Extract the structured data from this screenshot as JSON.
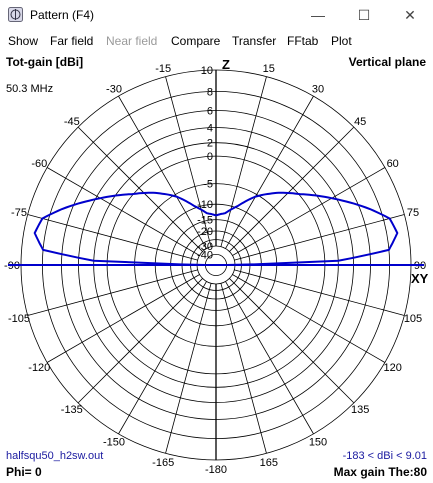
{
  "window": {
    "title": "Pattern   (F4)",
    "minimize": "—",
    "maximize": "☐",
    "close": "✕"
  },
  "menu": [
    {
      "label": "Show",
      "enabled": true
    },
    {
      "label": "Far field",
      "enabled": true
    },
    {
      "label": "Near field",
      "enabled": false
    },
    {
      "label": "Compare",
      "enabled": true
    },
    {
      "label": "Transfer",
      "enabled": true
    },
    {
      "label": "FFtab",
      "enabled": true
    },
    {
      "label": "Plot",
      "enabled": true
    }
  ],
  "plot": {
    "quantity": "Tot-gain [dBi]",
    "plane": "Vertical plane",
    "frequency": "50.3 MHz",
    "axis_top": "Z",
    "axis_right": "XY",
    "filename": "halfsqu50_h2sw.out",
    "gain_range": "-183 < dBi < 9.01",
    "phi": "Phi= 0",
    "max_gain": "Max gain The:80",
    "trace_color": "#0000cc"
  },
  "chart_data": {
    "type": "polar",
    "angle_labels": [
      "-15",
      "-30",
      "-45",
      "-60",
      "-75",
      "-90",
      "-105",
      "-120",
      "-135",
      "-150",
      "-165",
      "-180",
      "165",
      "150",
      "135",
      "120",
      "105",
      "90",
      "75",
      "60",
      "45",
      "30",
      "15",
      "0"
    ],
    "radial_ticks": [
      10,
      8,
      6,
      4,
      2,
      0,
      -5,
      -10,
      -15,
      -20,
      -25,
      -30,
      -40
    ],
    "radial_tick_labels": [
      "10",
      "8",
      "6",
      "4",
      "2",
      "0",
      "-5",
      "-10",
      "-15",
      "-20",
      "-30",
      "-40"
    ],
    "theta_deg": [
      0,
      10,
      20,
      30,
      40,
      50,
      60,
      70,
      75,
      80,
      85,
      88,
      90
    ],
    "gain_dbi": [
      -13.5,
      -12.5,
      -9.5,
      -5.5,
      -2.5,
      0.2,
      3.5,
      7.0,
      8.6,
      9.01,
      8.0,
      2.0,
      -183
    ]
  }
}
